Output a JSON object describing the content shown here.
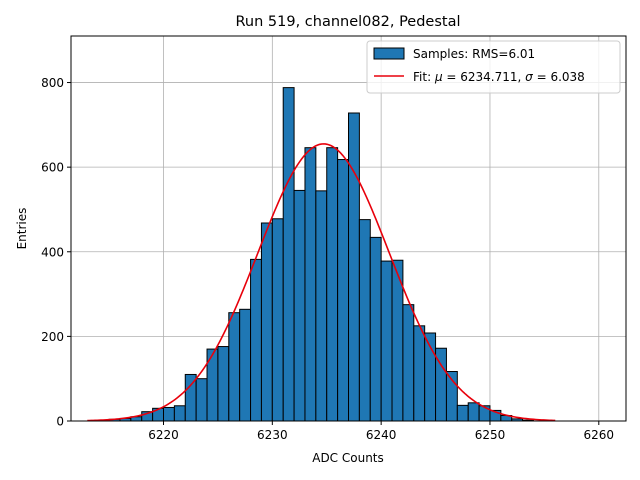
{
  "chart_data": {
    "type": "bar",
    "subtype": "histogram-with-gaussian-fit",
    "title": "Run 519, channel082, Pedestal",
    "xlabel": "ADC Counts",
    "ylabel": "Entries",
    "xlim": [
      6211.5,
      6262.5
    ],
    "ylim": [
      0,
      910
    ],
    "x_ticks": [
      6220,
      6230,
      6240,
      6250,
      6260
    ],
    "y_ticks": [
      0,
      200,
      400,
      600,
      800
    ],
    "grid": true,
    "legend_position": "top-right",
    "histogram": {
      "name": "Samples: RMS=6.01",
      "color": "#1f77b4",
      "edge_color": "#000000",
      "bin_width": 1,
      "bin_starts": [
        6214,
        6215,
        6216,
        6217,
        6218,
        6219,
        6220,
        6221,
        6222,
        6223,
        6224,
        6225,
        6226,
        6227,
        6228,
        6229,
        6230,
        6231,
        6232,
        6233,
        6234,
        6235,
        6236,
        6237,
        6238,
        6239,
        6240,
        6241,
        6242,
        6243,
        6244,
        6245,
        6246,
        6247,
        6248,
        6249,
        6250,
        6251,
        6252,
        6253
      ],
      "counts": [
        2,
        4,
        6,
        10,
        22,
        30,
        32,
        36,
        110,
        100,
        170,
        176,
        256,
        264,
        382,
        468,
        478,
        788,
        545,
        646,
        544,
        646,
        618,
        728,
        476,
        434,
        378,
        380,
        275,
        225,
        208,
        172,
        117,
        37,
        43,
        36,
        25,
        13,
        5,
        2
      ]
    },
    "fit": {
      "name": "Fit: μ = 6234.711, σ = 6.038",
      "name_prefix": "Fit: ",
      "mu_symbol": "μ",
      "mu_text": " = 6234.711, ",
      "sigma_symbol": "σ",
      "sigma_text": " = 6.038",
      "color": "#e8000b",
      "mu": 6234.711,
      "sigma": 6.038,
      "amplitude": 655,
      "x_range": [
        6213,
        6256
      ]
    }
  }
}
